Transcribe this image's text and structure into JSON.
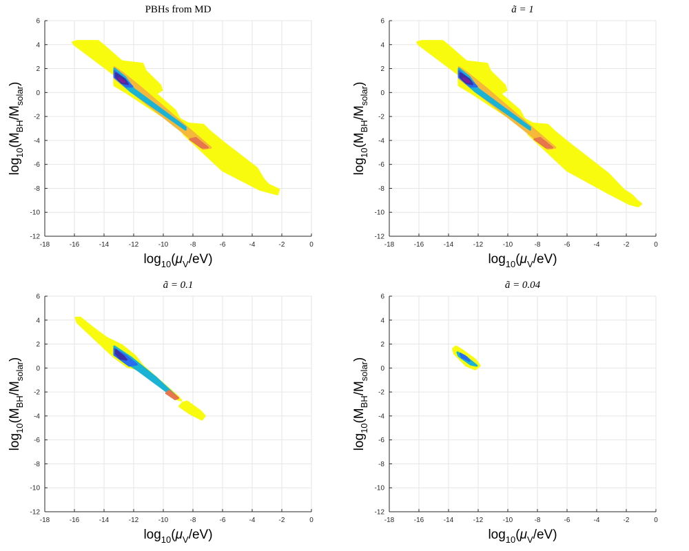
{
  "figure": {
    "xlabel_main": "log",
    "xlabel_sub": "10",
    "xlabel_rest_a": "(",
    "xlabel_mu": "μ",
    "xlabel_mu_sub": "V",
    "xlabel_rest_b": "/eV)",
    "ylabel_main": "log",
    "ylabel_sub": "10",
    "ylabel_rest_a": "(M",
    "ylabel_bh_sub": "BH",
    "ylabel_rest_b": "/M",
    "ylabel_solar_sub": "solar",
    "ylabel_rest_c": ")"
  },
  "colors": {
    "yellow": "#f9fb0e",
    "orange": "#f5b83a",
    "orange_red": "#e6764c",
    "cyan": "#1ab3d6",
    "blue": "#2a6cf0",
    "dark_blue": "#3d2fa8",
    "purple": "#7a1fa0",
    "grid": "#e6e6e6",
    "axis": "#262626"
  },
  "chart_data": [
    {
      "type": "contour",
      "id": "pbhs-from-md",
      "title": "PBHs from MD",
      "title_math": false,
      "xlim": [
        -18,
        0
      ],
      "ylim": [
        -12,
        6
      ],
      "xticks": [
        -18,
        -16,
        -14,
        -12,
        -10,
        -8,
        -6,
        -4,
        -2,
        0
      ],
      "yticks": [
        -12,
        -10,
        -8,
        -6,
        -4,
        -2,
        0,
        2,
        4,
        6
      ],
      "grid": true,
      "regions": [
        {
          "name": "main-band",
          "level": "yellow",
          "points": [
            [
              -16.1,
              4.2
            ],
            [
              -15.8,
              4.3
            ],
            [
              -14.4,
              4.3
            ],
            [
              -14,
              3.9
            ],
            [
              -12.8,
              2.6
            ],
            [
              -11.4,
              2.4
            ],
            [
              -11.2,
              1.8
            ],
            [
              -10.2,
              0.6
            ],
            [
              -10.1,
              0.2
            ],
            [
              -10.5,
              -0.1
            ],
            [
              -9.2,
              -1.5
            ],
            [
              -8.9,
              -2.2
            ],
            [
              -8.3,
              -2.6
            ],
            [
              -7.3,
              -2.7
            ],
            [
              -6.8,
              -3.3
            ],
            [
              -5.9,
              -4.2
            ],
            [
              -3.7,
              -6.3
            ],
            [
              -3.2,
              -7.3
            ],
            [
              -2.9,
              -7.7
            ],
            [
              -2.2,
              -8.1
            ],
            [
              -2.3,
              -8.5
            ],
            [
              -2.9,
              -8.3
            ],
            [
              -3.5,
              -8.1
            ],
            [
              -6,
              -6.5
            ],
            [
              -8.6,
              -3.5
            ],
            [
              -8.8,
              -3
            ],
            [
              -12.5,
              0
            ],
            [
              -13.3,
              0.6
            ],
            [
              -13.3,
              1.5
            ],
            [
              -16,
              4
            ],
            [
              -16.1,
              4.2
            ]
          ]
        },
        {
          "name": "inner-band",
          "level": "orange",
          "points": [
            [
              -13.3,
              2.1
            ],
            [
              -12.7,
              1.6
            ],
            [
              -11.5,
              0.4
            ],
            [
              -6.8,
              -4.6
            ],
            [
              -7.3,
              -4.7
            ],
            [
              -8.7,
              -3.3
            ],
            [
              -13.3,
              1.2
            ]
          ]
        },
        {
          "name": "cyan-core",
          "level": "cyan",
          "points": [
            [
              -13.3,
              2
            ],
            [
              -12.6,
              1.3
            ],
            [
              -12,
              0.3
            ],
            [
              -8.5,
              -2.9
            ],
            [
              -8.5,
              -3.1
            ],
            [
              -12.2,
              0.1
            ],
            [
              -13.3,
              1.3
            ]
          ]
        },
        {
          "name": "blue-core",
          "level": "blue",
          "points": [
            [
              -13.3,
              1.8
            ],
            [
              -12.7,
              1.2
            ],
            [
              -12.1,
              0.5
            ],
            [
              -12.5,
              0.5
            ],
            [
              -13.3,
              1.3
            ]
          ]
        },
        {
          "name": "dark-blue-core",
          "level": "dark_blue",
          "points": [
            [
              -13.2,
              1.6
            ],
            [
              -12.6,
              1.1
            ],
            [
              -12.4,
              0.7
            ],
            [
              -12.8,
              0.8
            ],
            [
              -13.2,
              1.3
            ]
          ]
        },
        {
          "name": "purple-core",
          "level": "purple",
          "points": [
            [
              -13,
              1.2
            ],
            [
              -12.6,
              0.9
            ],
            [
              -12.8,
              0.9
            ]
          ]
        },
        {
          "name": "orange-red-tip",
          "level": "orange_red",
          "points": [
            [
              -7.8,
              -3.8
            ],
            [
              -7,
              -4.6
            ],
            [
              -7.4,
              -4.6
            ],
            [
              -8.2,
              -3.9
            ]
          ]
        }
      ]
    },
    {
      "type": "contour",
      "id": "a-tilde-1",
      "title": "ã = 1",
      "title_math": true,
      "xlim": [
        -18,
        0
      ],
      "ylim": [
        -12,
        6
      ],
      "xticks": [
        -18,
        -16,
        -14,
        -12,
        -10,
        -8,
        -6,
        -4,
        -2,
        0
      ],
      "yticks": [
        -12,
        -10,
        -8,
        -6,
        -4,
        -2,
        0,
        2,
        4,
        6
      ],
      "grid": true,
      "regions": [
        {
          "name": "main-band",
          "level": "yellow",
          "points": [
            [
              -16.1,
              4.2
            ],
            [
              -15.8,
              4.3
            ],
            [
              -14.4,
              4.3
            ],
            [
              -14,
              3.9
            ],
            [
              -12.8,
              2.6
            ],
            [
              -11.4,
              2.4
            ],
            [
              -11.2,
              1.8
            ],
            [
              -10.2,
              0.6
            ],
            [
              -10.1,
              0.2
            ],
            [
              -10.5,
              -0.1
            ],
            [
              -9.2,
              -1.5
            ],
            [
              -8.9,
              -2.2
            ],
            [
              -8.3,
              -2.6
            ],
            [
              -7.3,
              -2.7
            ],
            [
              -6.8,
              -3.3
            ],
            [
              -5.9,
              -4.2
            ],
            [
              -3.2,
              -6.8
            ],
            [
              -2.2,
              -8.1
            ],
            [
              -1.6,
              -8.6
            ],
            [
              -1.3,
              -9
            ],
            [
              -1,
              -9.3
            ],
            [
              -1.2,
              -9.5
            ],
            [
              -1.8,
              -9.3
            ],
            [
              -3.2,
              -8.4
            ],
            [
              -6,
              -6.5
            ],
            [
              -8.6,
              -3.5
            ],
            [
              -8.8,
              -3
            ],
            [
              -12.5,
              0
            ],
            [
              -13.3,
              0.6
            ],
            [
              -13.3,
              1.5
            ],
            [
              -16,
              4
            ],
            [
              -16.1,
              4.2
            ]
          ]
        },
        {
          "name": "inner-band",
          "level": "orange",
          "points": [
            [
              -13.3,
              2.1
            ],
            [
              -12.7,
              1.6
            ],
            [
              -11.5,
              0.4
            ],
            [
              -6.8,
              -4.6
            ],
            [
              -7.3,
              -4.7
            ],
            [
              -8.7,
              -3.3
            ],
            [
              -13.3,
              1.2
            ]
          ]
        },
        {
          "name": "cyan-core",
          "level": "cyan",
          "points": [
            [
              -13.3,
              2
            ],
            [
              -12.6,
              1.3
            ],
            [
              -12,
              0.3
            ],
            [
              -8.5,
              -2.9
            ],
            [
              -8.5,
              -3.1
            ],
            [
              -12.2,
              0.1
            ],
            [
              -13.3,
              1.3
            ]
          ]
        },
        {
          "name": "blue-core",
          "level": "blue",
          "points": [
            [
              -13.3,
              1.8
            ],
            [
              -12.7,
              1.2
            ],
            [
              -12.1,
              0.5
            ],
            [
              -12.5,
              0.5
            ],
            [
              -13.3,
              1.3
            ]
          ]
        },
        {
          "name": "dark-blue-core",
          "level": "dark_blue",
          "points": [
            [
              -13.2,
              1.6
            ],
            [
              -12.6,
              1.1
            ],
            [
              -12.4,
              0.7
            ],
            [
              -12.8,
              0.8
            ],
            [
              -13.2,
              1.3
            ]
          ]
        },
        {
          "name": "purple-core",
          "level": "purple",
          "points": [
            [
              -13,
              1.2
            ],
            [
              -12.6,
              0.9
            ],
            [
              -12.8,
              0.9
            ]
          ]
        },
        {
          "name": "orange-red-tip",
          "level": "orange_red",
          "points": [
            [
              -7.8,
              -3.8
            ],
            [
              -7,
              -4.6
            ],
            [
              -7.4,
              -4.6
            ],
            [
              -8.2,
              -3.9
            ]
          ]
        }
      ]
    },
    {
      "type": "contour",
      "id": "a-tilde-0-1",
      "title": "ã = 0.1",
      "title_math": true,
      "xlim": [
        -18,
        0
      ],
      "ylim": [
        -12,
        6
      ],
      "xticks": [
        -18,
        -16,
        -14,
        -12,
        -10,
        -8,
        -6,
        -4,
        -2,
        0
      ],
      "yticks": [
        -12,
        -10,
        -8,
        -6,
        -4,
        -2,
        0,
        2,
        4,
        6
      ],
      "grid": true,
      "regions": [
        {
          "name": "main-band",
          "level": "yellow",
          "points": [
            [
              -15.9,
              4.2
            ],
            [
              -15.6,
              4.2
            ],
            [
              -14.8,
              3.4
            ],
            [
              -13.8,
              2.5
            ],
            [
              -12.8,
              1.9
            ],
            [
              -11.9,
              1
            ],
            [
              -11.4,
              0.2
            ],
            [
              -9,
              -2.4
            ],
            [
              -8.8,
              -2.7
            ],
            [
              -9.1,
              -2.6
            ],
            [
              -11.7,
              -0.1
            ],
            [
              -12.4,
              0.1
            ],
            [
              -13.3,
              0.9
            ],
            [
              -15.8,
              3.8
            ]
          ]
        },
        {
          "name": "tail-blob",
          "level": "yellow",
          "points": [
            [
              -8.7,
              -2.9
            ],
            [
              -8.4,
              -2.8
            ],
            [
              -7.5,
              -3.6
            ],
            [
              -7.2,
              -4
            ],
            [
              -7.4,
              -4.3
            ],
            [
              -8.2,
              -3.8
            ],
            [
              -8.9,
              -3.2
            ]
          ]
        },
        {
          "name": "cyan-core",
          "level": "cyan",
          "points": [
            [
              -13.3,
              1.8
            ],
            [
              -12.2,
              0.9
            ],
            [
              -10.5,
              -0.8
            ],
            [
              -9.1,
              -2.4
            ],
            [
              -9.4,
              -2.3
            ],
            [
              -11.7,
              -0.2
            ],
            [
              -13.3,
              1.1
            ]
          ]
        },
        {
          "name": "blue-core",
          "level": "blue",
          "points": [
            [
              -13.3,
              1.6
            ],
            [
              -12.5,
              1
            ],
            [
              -11.8,
              0.3
            ],
            [
              -12.3,
              0.2
            ],
            [
              -13.3,
              1.1
            ]
          ]
        },
        {
          "name": "dark-blue-core",
          "level": "dark_blue",
          "points": [
            [
              -13.2,
              1.5
            ],
            [
              -12.7,
              1
            ],
            [
              -12.5,
              0.7
            ],
            [
              -12.9,
              0.8
            ],
            [
              -13.2,
              1.2
            ]
          ]
        },
        {
          "name": "orange-red-tip",
          "level": "orange_red",
          "points": [
            [
              -9.6,
              -1.9
            ],
            [
              -9,
              -2.5
            ],
            [
              -9.2,
              -2.6
            ],
            [
              -9.8,
              -2.1
            ]
          ]
        }
      ]
    },
    {
      "type": "contour",
      "id": "a-tilde-0-04",
      "title": "ã = 0.04",
      "title_math": true,
      "xlim": [
        -18,
        0
      ],
      "ylim": [
        -12,
        6
      ],
      "xticks": [
        -18,
        -16,
        -14,
        -12,
        -10,
        -8,
        -6,
        -4,
        -2,
        0
      ],
      "yticks": [
        -12,
        -10,
        -8,
        -6,
        -4,
        -2,
        0,
        2,
        4,
        6
      ],
      "grid": true,
      "regions": [
        {
          "name": "main-blob",
          "level": "yellow",
          "points": [
            [
              -13.7,
              1.6
            ],
            [
              -13.5,
              1.8
            ],
            [
              -13.1,
              1.5
            ],
            [
              -12.2,
              0.7
            ],
            [
              -11.9,
              0.2
            ],
            [
              -12.2,
              -0.1
            ],
            [
              -12.8,
              0.2
            ],
            [
              -13.6,
              1.2
            ]
          ]
        },
        {
          "name": "cyan-core",
          "level": "cyan",
          "points": [
            [
              -13.4,
              1.3
            ],
            [
              -12.9,
              1
            ],
            [
              -12.1,
              0.2
            ],
            [
              -12.5,
              0.3
            ],
            [
              -13.3,
              1
            ]
          ]
        },
        {
          "name": "blue-core",
          "level": "blue",
          "points": [
            [
              -13.2,
              1.2
            ],
            [
              -12.8,
              0.9
            ],
            [
              -12.6,
              0.6
            ],
            [
              -13.1,
              0.9
            ]
          ]
        }
      ]
    }
  ]
}
